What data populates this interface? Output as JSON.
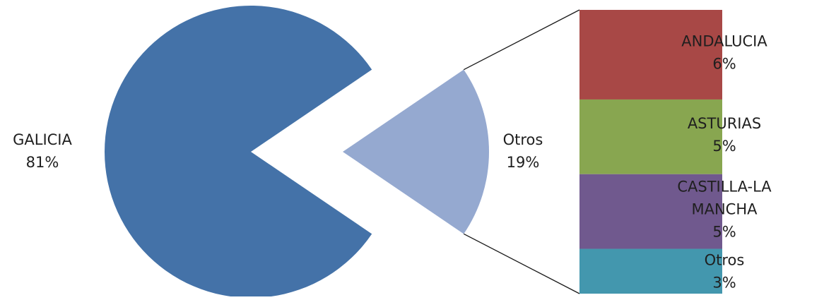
{
  "chart_data": {
    "type": "pie",
    "subtype": "pie-of-bar",
    "slices": [
      {
        "name": "GALICIA",
        "percent_label": "81%",
        "value": 81,
        "color": "#4472A8"
      },
      {
        "name": "Otros",
        "percent_label": "19%",
        "value": 19,
        "color": "#95A9D0"
      }
    ],
    "breakdown_of": "Otros",
    "bar_segments": [
      {
        "name": "ANDALUCIA",
        "percent_label": "6%",
        "value": 6,
        "color": "#A84846"
      },
      {
        "name": "ASTURIAS",
        "percent_label": "5%",
        "value": 5,
        "color": "#88A650"
      },
      {
        "name": "CASTILLA-LA MANCHA",
        "percent_label": "5%",
        "value": 5,
        "color": "#70598E"
      },
      {
        "name": "Otros",
        "percent_label": "3%",
        "value": 3,
        "color": "#4397AE"
      }
    ],
    "title": "",
    "legend": "none",
    "data_labels": "category and percentage"
  }
}
